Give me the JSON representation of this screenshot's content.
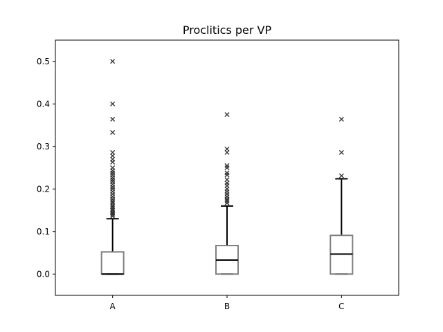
{
  "chart_data": {
    "type": "box",
    "title": "Proclitics per VP",
    "xlabel": "",
    "ylabel": "",
    "ylim": [
      -0.05,
      0.55
    ],
    "yticks": [
      0.0,
      0.1,
      0.2,
      0.3,
      0.4,
      0.5
    ],
    "ytick_labels": [
      "0.0",
      "0.1",
      "0.2",
      "0.3",
      "0.4",
      "0.5"
    ],
    "grid": false,
    "categories": [
      "A",
      "B",
      "C"
    ],
    "boxes": [
      {
        "name": "A",
        "whisker_low": 0.0,
        "q1": 0.0,
        "median": 0.0,
        "q3": 0.052,
        "whisker_high": 0.13,
        "outliers": [
          0.5,
          0.4,
          0.364,
          0.333,
          0.286,
          0.278,
          0.27,
          0.263,
          0.25,
          0.243,
          0.238,
          0.233,
          0.227,
          0.222,
          0.217,
          0.211,
          0.205,
          0.2,
          0.194,
          0.188,
          0.182,
          0.176,
          0.171,
          0.167,
          0.162,
          0.158,
          0.154,
          0.15,
          0.146,
          0.143,
          0.14,
          0.136
        ]
      },
      {
        "name": "B",
        "whisker_low": 0.0,
        "q1": 0.0,
        "median": 0.033,
        "q3": 0.067,
        "whisker_high": 0.16,
        "outliers": [
          0.375,
          0.294,
          0.286,
          0.255,
          0.25,
          0.238,
          0.233,
          0.222,
          0.214,
          0.208,
          0.2,
          0.194,
          0.188,
          0.182,
          0.176,
          0.172,
          0.167
        ]
      },
      {
        "name": "C",
        "whisker_low": 0.0,
        "q1": 0.0,
        "median": 0.047,
        "q3": 0.091,
        "whisker_high": 0.224,
        "outliers": [
          0.364,
          0.286,
          0.231
        ]
      }
    ],
    "colors": {
      "box_edge": "#808080",
      "median": "#000000",
      "whisker": "#000000",
      "outlier": "#333333"
    }
  }
}
